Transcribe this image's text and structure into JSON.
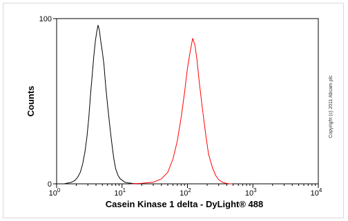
{
  "chart_data": {
    "type": "line",
    "xlabel": "Casein Kinase 1 delta - DyLight® 488",
    "ylabel": "Counts",
    "x_scale": "log",
    "xlim": [
      1,
      10000
    ],
    "ylim": [
      0,
      100
    ],
    "x_ticks": [
      {
        "base": "10",
        "exp": "0",
        "value": 1
      },
      {
        "base": "10",
        "exp": "1",
        "value": 10
      },
      {
        "base": "10",
        "exp": "2",
        "value": 100
      },
      {
        "base": "10",
        "exp": "3",
        "value": 1000
      },
      {
        "base": "10",
        "exp": "4",
        "value": 10000
      }
    ],
    "y_ticks": [
      {
        "label": "0",
        "value": 0
      },
      {
        "label": "100",
        "value": 100
      }
    ],
    "grid": false,
    "copyright": "Copyright (c) 2011 Abcam plc",
    "series": [
      {
        "color": "#000000",
        "x": [
          1.3,
          1.5,
          1.7,
          1.9,
          2.1,
          2.3,
          2.5,
          2.7,
          2.9,
          3.1,
          3.3,
          3.5,
          3.7,
          3.9,
          4.1,
          4.3,
          4.5,
          4.7,
          5.0,
          5.3,
          5.6,
          6.0,
          6.5,
          7.0,
          7.5,
          8.0,
          8.7,
          9.4,
          10.2,
          11,
          12.5,
          14,
          16,
          18
        ],
        "y": [
          0,
          0.5,
          1,
          2,
          4,
          7,
          12,
          19,
          28,
          40,
          54,
          66,
          77,
          86,
          92,
          96,
          93,
          87,
          80,
          72,
          60,
          48,
          35,
          24,
          15,
          9,
          5,
          3,
          2,
          1,
          0.5,
          0.3,
          0.1,
          0
        ]
      },
      {
        "color": "#ff0000",
        "x": [
          14,
          20,
          30,
          40,
          50,
          60,
          70,
          80,
          90,
          100,
          110,
          120,
          130,
          140,
          150,
          170,
          190,
          210,
          240,
          270,
          300,
          340,
          380,
          420,
          480
        ],
        "y": [
          0,
          0.3,
          1,
          3,
          7,
          15,
          26,
          40,
          55,
          70,
          80,
          88,
          84,
          75,
          63,
          45,
          30,
          18,
          10,
          5,
          2.5,
          1,
          0.4,
          0.1,
          0
        ]
      }
    ]
  }
}
